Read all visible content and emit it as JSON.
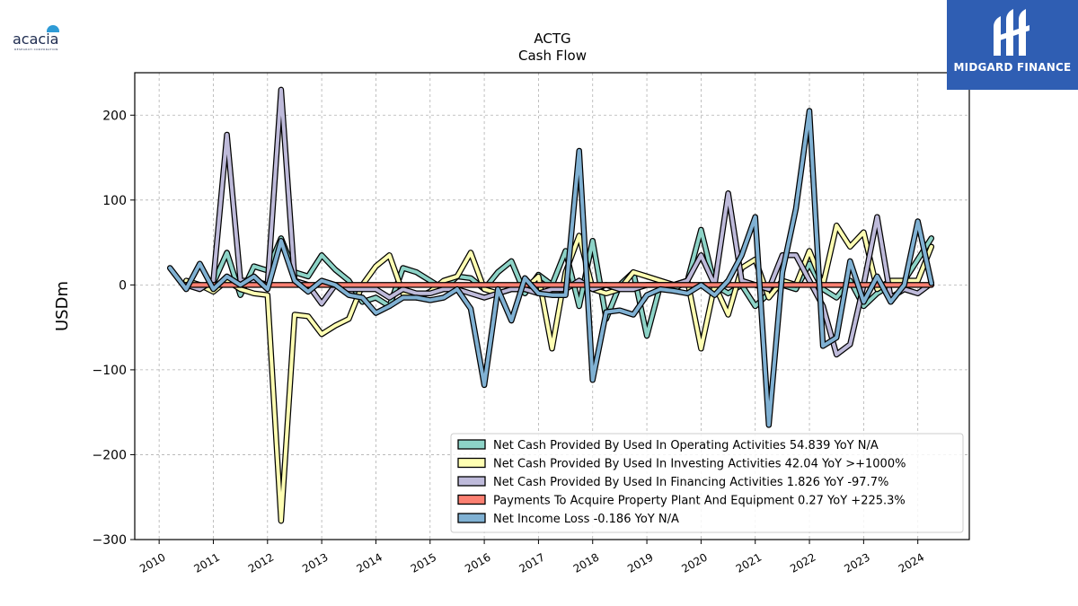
{
  "logos": {
    "left_text": "acacia",
    "left_sub": "RESEARCH CORPORATION",
    "right_text": "MIDGARD FINANCE"
  },
  "chart_data": {
    "type": "line",
    "title": "ACTG",
    "subtitle": "Cash Flow",
    "ylabel": "USDm",
    "xlabel": "",
    "ylim": [
      -300,
      250
    ],
    "xlim": [
      2009.55,
      2024.95
    ],
    "yticks": [
      -300,
      -200,
      -100,
      0,
      100,
      200
    ],
    "yticklabels": [
      "−300",
      "−200",
      "−100",
      "0",
      "100",
      "200"
    ],
    "xticks": [
      2010,
      2011,
      2012,
      2013,
      2014,
      2015,
      2016,
      2017,
      2018,
      2019,
      2020,
      2021,
      2022,
      2023,
      2024
    ],
    "xticklabels": [
      "2010",
      "2011",
      "2012",
      "2013",
      "2014",
      "2015",
      "2016",
      "2017",
      "2018",
      "2019",
      "2020",
      "2021",
      "2022",
      "2023",
      "2024"
    ],
    "grid": true,
    "legend_position": "lower-right",
    "series": [
      {
        "name": "Net Cash Provided By Used In Operating Activities",
        "legend_label": "Net Cash Provided By Used In Operating Activities  54.839 YoY N/A",
        "color": "#8dd3c7",
        "x": [
          2011.0,
          2011.25,
          2011.5,
          2011.75,
          2012.0,
          2012.25,
          2012.5,
          2012.75,
          2013.0,
          2013.25,
          2013.5,
          2013.75,
          2014.0,
          2014.25,
          2014.5,
          2014.75,
          2015.0,
          2015.25,
          2015.5,
          2015.75,
          2016.0,
          2016.25,
          2016.5,
          2016.75,
          2017.0,
          2017.25,
          2017.5,
          2017.75,
          2018.0,
          2018.25,
          2018.5,
          2018.75,
          2019.0,
          2019.25,
          2019.5,
          2019.75,
          2020.0,
          2020.25,
          2020.5,
          2020.75,
          2021.0,
          2021.25,
          2021.5,
          2021.75,
          2022.0,
          2022.25,
          2022.5,
          2022.75,
          2023.0,
          2023.25,
          2023.5,
          2023.75,
          2024.0,
          2024.25
        ],
        "values": [
          2,
          38,
          -12,
          22,
          17,
          55,
          15,
          10,
          35,
          18,
          5,
          -20,
          -15,
          -25,
          20,
          15,
          5,
          -5,
          10,
          8,
          -5,
          15,
          28,
          -10,
          12,
          0,
          40,
          -25,
          52,
          -40,
          0,
          15,
          -60,
          0,
          -5,
          5,
          65,
          0,
          -10,
          0,
          -25,
          -10,
          0,
          -5,
          25,
          -5,
          -15,
          5,
          -25,
          -10,
          0,
          5,
          30,
          55
        ]
      },
      {
        "name": "Net Cash Provided By Used In Investing Activities",
        "legend_label": "Net Cash Provided By Used In Investing Activities  42.04 YoY >+1000%",
        "color": "#ffffb3",
        "x": [
          2010.5,
          2010.75,
          2011.0,
          2011.25,
          2011.5,
          2011.75,
          2012.0,
          2012.25,
          2012.5,
          2012.75,
          2013.0,
          2013.25,
          2013.5,
          2013.75,
          2014.0,
          2014.25,
          2014.5,
          2014.75,
          2015.0,
          2015.25,
          2015.5,
          2015.75,
          2016.0,
          2016.25,
          2016.5,
          2016.75,
          2017.0,
          2017.25,
          2017.5,
          2017.75,
          2018.0,
          2018.25,
          2018.5,
          2018.75,
          2019.0,
          2019.25,
          2019.5,
          2019.75,
          2020.0,
          2020.25,
          2020.5,
          2020.75,
          2021.0,
          2021.25,
          2021.5,
          2021.75,
          2022.0,
          2022.25,
          2022.5,
          2022.75,
          2023.0,
          2023.25,
          2023.5,
          2023.75,
          2024.0,
          2024.25
        ],
        "values": [
          5,
          0,
          -8,
          5,
          -5,
          -10,
          -12,
          -278,
          -35,
          -37,
          -58,
          -48,
          -40,
          0,
          22,
          35,
          -10,
          -15,
          -8,
          5,
          10,
          38,
          -5,
          -10,
          -5,
          -5,
          10,
          -75,
          15,
          58,
          -5,
          -10,
          -5,
          15,
          10,
          5,
          0,
          5,
          -75,
          0,
          -35,
          20,
          30,
          -15,
          5,
          0,
          40,
          0,
          70,
          45,
          62,
          -5,
          5,
          5,
          5,
          45
        ]
      },
      {
        "name": "Net Cash Provided By Used In Financing Activities",
        "legend_label": "Net Cash Provided By Used In Financing Activities  1.826 YoY -97.7%",
        "color": "#bebada",
        "x": [
          2010.5,
          2010.75,
          2011.0,
          2011.25,
          2011.5,
          2011.75,
          2012.0,
          2012.25,
          2012.5,
          2012.75,
          2013.0,
          2013.25,
          2013.5,
          2013.75,
          2014.0,
          2014.25,
          2014.5,
          2014.75,
          2015.0,
          2015.25,
          2015.5,
          2015.75,
          2016.0,
          2016.25,
          2016.5,
          2016.75,
          2017.0,
          2017.25,
          2017.5,
          2017.75,
          2018.0,
          2018.25,
          2018.5,
          2018.75,
          2019.0,
          2019.25,
          2019.5,
          2019.75,
          2020.0,
          2020.25,
          2020.5,
          2020.75,
          2021.0,
          2021.25,
          2021.5,
          2021.75,
          2022.0,
          2022.25,
          2022.5,
          2022.75,
          2023.0,
          2023.25,
          2023.5,
          2023.75,
          2024.0,
          2024.25
        ],
        "values": [
          0,
          -5,
          5,
          177,
          5,
          5,
          0,
          230,
          5,
          0,
          -22,
          0,
          -5,
          -5,
          -5,
          -15,
          -5,
          -10,
          -10,
          -5,
          -5,
          -10,
          -15,
          -10,
          -5,
          -5,
          -10,
          -5,
          -5,
          5,
          -5,
          0,
          -5,
          -5,
          0,
          0,
          0,
          5,
          35,
          0,
          108,
          5,
          0,
          -5,
          35,
          35,
          5,
          -25,
          -82,
          -70,
          0,
          80,
          -15,
          -5,
          -10,
          2
        ]
      },
      {
        "name": "Payments To Acquire Property Plant And Equipment",
        "legend_label": "Payments To Acquire Property Plant And Equipment  0.27 YoY +225.3%",
        "color": "#fb8072",
        "x": [
          2010.5,
          2011.0,
          2011.5,
          2012.0,
          2012.5,
          2013.0,
          2013.5,
          2014.0,
          2014.5,
          2015.0,
          2015.5,
          2016.0,
          2016.5,
          2017.0,
          2017.5,
          2018.0,
          2018.5,
          2019.0,
          2019.5,
          2020.0,
          2020.5,
          2021.0,
          2021.5,
          2022.0,
          2022.5,
          2023.0,
          2023.5,
          2024.0,
          2024.25
        ],
        "values": [
          0,
          0,
          0,
          0,
          0,
          0,
          0,
          0,
          0,
          0,
          0,
          0,
          0,
          0,
          0,
          0,
          0,
          0,
          0,
          0,
          0,
          0,
          0,
          0,
          0,
          0,
          0,
          0,
          0
        ]
      },
      {
        "name": "Net Income Loss",
        "legend_label": "Net Income Loss  -0.186 YoY N/A",
        "color": "#80b1d3",
        "x": [
          2010.2,
          2010.5,
          2010.75,
          2011.0,
          2011.25,
          2011.5,
          2011.75,
          2012.0,
          2012.25,
          2012.5,
          2012.75,
          2013.0,
          2013.25,
          2013.5,
          2013.75,
          2014.0,
          2014.25,
          2014.5,
          2014.75,
          2015.0,
          2015.25,
          2015.5,
          2015.75,
          2016.0,
          2016.25,
          2016.5,
          2016.75,
          2017.0,
          2017.25,
          2017.5,
          2017.75,
          2018.0,
          2018.25,
          2018.5,
          2018.75,
          2019.0,
          2019.25,
          2019.5,
          2019.75,
          2020.0,
          2020.25,
          2020.5,
          2020.75,
          2021.0,
          2021.25,
          2021.5,
          2021.75,
          2022.0,
          2022.25,
          2022.5,
          2022.75,
          2023.0,
          2023.25,
          2023.5,
          2023.75,
          2024.0,
          2024.25
        ],
        "values": [
          20,
          -5,
          25,
          -5,
          10,
          0,
          10,
          -5,
          52,
          5,
          -8,
          5,
          0,
          -12,
          -15,
          -33,
          -25,
          -15,
          -15,
          -18,
          -15,
          -5,
          -28,
          -118,
          -5,
          -42,
          8,
          -10,
          -12,
          -12,
          158,
          -112,
          -32,
          -30,
          -35,
          -12,
          -5,
          -7,
          -10,
          0,
          -12,
          5,
          35,
          80,
          -165,
          15,
          90,
          205,
          -72,
          -62,
          28,
          -20,
          10,
          -20,
          0,
          75,
          2
        ]
      }
    ]
  }
}
